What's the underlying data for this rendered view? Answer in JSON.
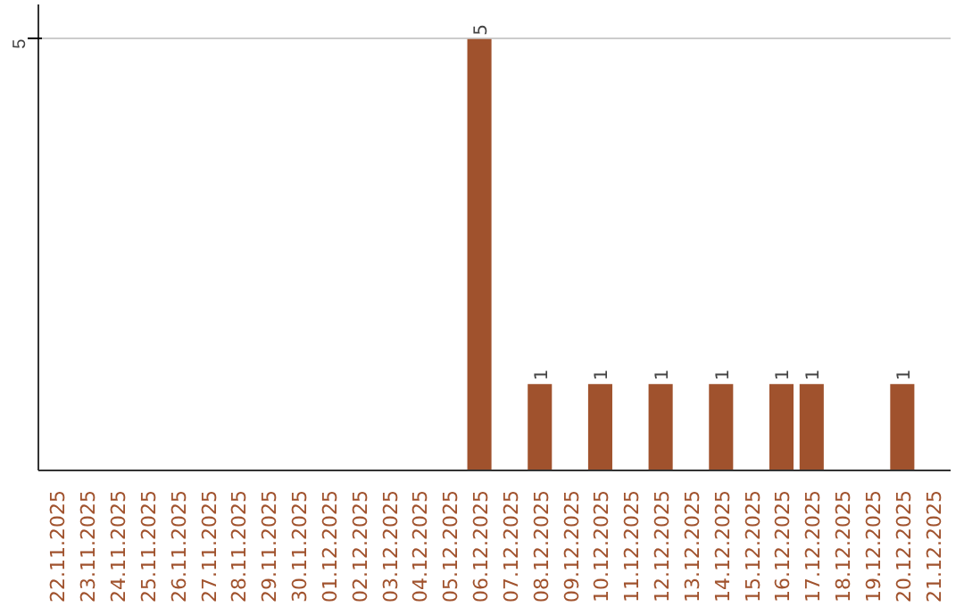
{
  "chart_data": {
    "type": "bar",
    "categories": [
      "22.11.2025",
      "23.11.2025",
      "24.11.2025",
      "25.11.2025",
      "26.11.2025",
      "27.11.2025",
      "28.11.2025",
      "29.11.2025",
      "30.11.2025",
      "01.12.2025",
      "02.12.2025",
      "03.12.2025",
      "04.12.2025",
      "05.12.2025",
      "06.12.2025",
      "07.12.2025",
      "08.12.2025",
      "09.12.2025",
      "10.12.2025",
      "11.12.2025",
      "12.12.2025",
      "13.12.2025",
      "14.12.2025",
      "15.12.2025",
      "16.12.2025",
      "17.12.2025",
      "18.12.2025",
      "19.12.2025",
      "20.12.2025",
      "21.12.2025"
    ],
    "values": [
      null,
      null,
      null,
      null,
      null,
      null,
      null,
      null,
      null,
      null,
      null,
      null,
      null,
      null,
      5,
      null,
      1,
      null,
      1,
      null,
      1,
      null,
      1,
      null,
      1,
      1,
      null,
      null,
      1,
      null
    ],
    "color": "#a0522d",
    "ylim": [
      0,
      5.4
    ],
    "yticks": [
      5
    ],
    "grid": "y",
    "data_labels": true
  }
}
